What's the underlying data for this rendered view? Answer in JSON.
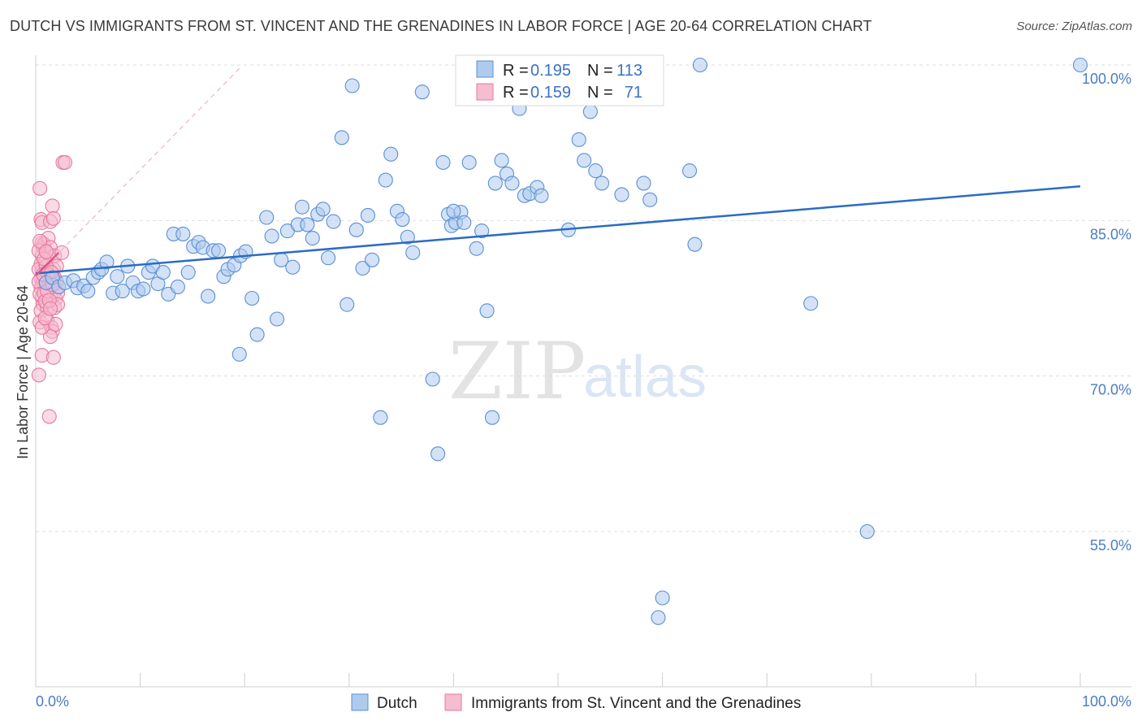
{
  "header": {
    "title": "DUTCH VS IMMIGRANTS FROM ST. VINCENT AND THE GRENADINES IN LABOR FORCE | AGE 20-64 CORRELATION CHART",
    "source": "Source: ZipAtlas.com"
  },
  "watermark": {
    "zip": "ZIP",
    "atlas": "atlas"
  },
  "legend_top": [
    {
      "r_label": "R =",
      "r_value": "0.195",
      "n_label": "N =",
      "n_value": "113"
    },
    {
      "r_label": "R =",
      "r_value": "0.159",
      "n_label": "N =",
      "n_value": "71"
    }
  ],
  "legend_bottom": [
    {
      "label": "Dutch"
    },
    {
      "label": "Immigrants from St. Vincent and the Grenadines"
    }
  ],
  "colors": {
    "dutch_fill": "#aecbee",
    "dutch_stroke": "#5b8fd4",
    "dutch_line": "#2b6cc4",
    "svg_fill": "#f6bcd0",
    "svg_stroke": "#e8789f",
    "svg_line": "#e05586",
    "grid": "#dedede",
    "axis_tick_text": "#4a7cc5"
  },
  "chart_data": {
    "type": "scatter",
    "title": "DUTCH VS IMMIGRANTS FROM ST. VINCENT AND THE GRENADINES IN LABOR FORCE | AGE 20-64 CORRELATION CHART",
    "xlabel": "",
    "ylabel": "In Labor Force | Age 20-64",
    "xlim": [
      0,
      100
    ],
    "ylim": [
      40,
      102
    ],
    "x_ticks": [
      "0.0%",
      "100.0%"
    ],
    "y_ticks": [
      {
        "value": 55,
        "label": "55.0%"
      },
      {
        "value": 70,
        "label": "70.0%"
      },
      {
        "value": 85,
        "label": "85.0%"
      },
      {
        "value": 100,
        "label": "100.0%"
      }
    ],
    "grid": true,
    "legend_placement": "top-center",
    "series": [
      {
        "name": "Dutch",
        "r": 0.195,
        "n": 113,
        "trend": {
          "x": [
            0,
            100
          ],
          "y": [
            79.9,
            88.3
          ]
        },
        "points": [
          [
            1.0,
            79.0
          ],
          [
            1.6,
            79.5
          ],
          [
            2.2,
            78.6
          ],
          [
            2.8,
            79.0
          ],
          [
            3.6,
            79.2
          ],
          [
            4.0,
            78.5
          ],
          [
            4.6,
            78.7
          ],
          [
            5.0,
            78.2
          ],
          [
            5.5,
            79.5
          ],
          [
            6.0,
            80.0
          ],
          [
            6.3,
            80.3
          ],
          [
            6.8,
            81.0
          ],
          [
            7.4,
            78.0
          ],
          [
            7.8,
            79.6
          ],
          [
            8.3,
            78.2
          ],
          [
            8.8,
            80.6
          ],
          [
            9.3,
            79.0
          ],
          [
            9.8,
            78.2
          ],
          [
            10.3,
            78.4
          ],
          [
            10.8,
            80.0
          ],
          [
            11.2,
            80.6
          ],
          [
            11.7,
            78.9
          ],
          [
            12.2,
            80.0
          ],
          [
            12.7,
            77.9
          ],
          [
            13.2,
            83.7
          ],
          [
            13.6,
            78.6
          ],
          [
            14.1,
            83.7
          ],
          [
            14.6,
            80.0
          ],
          [
            15.1,
            82.5
          ],
          [
            15.6,
            82.9
          ],
          [
            16.0,
            82.4
          ],
          [
            16.5,
            77.7
          ],
          [
            17.0,
            82.1
          ],
          [
            17.5,
            82.1
          ],
          [
            18.0,
            79.6
          ],
          [
            18.4,
            80.3
          ],
          [
            19.0,
            80.7
          ],
          [
            19.6,
            81.6
          ],
          [
            20.1,
            82.0
          ],
          [
            20.7,
            77.5
          ],
          [
            21.2,
            74.0
          ],
          [
            19.5,
            72.1
          ],
          [
            22.1,
            85.3
          ],
          [
            22.6,
            83.5
          ],
          [
            23.1,
            75.5
          ],
          [
            23.5,
            81.2
          ],
          [
            24.1,
            84.0
          ],
          [
            24.6,
            80.5
          ],
          [
            25.1,
            84.6
          ],
          [
            25.5,
            86.3
          ],
          [
            26.0,
            84.6
          ],
          [
            26.5,
            83.3
          ],
          [
            27.0,
            85.6
          ],
          [
            27.5,
            86.1
          ],
          [
            28.0,
            81.4
          ],
          [
            28.5,
            84.9
          ],
          [
            29.3,
            93.0
          ],
          [
            29.8,
            76.9
          ],
          [
            30.3,
            98.0
          ],
          [
            30.7,
            84.1
          ],
          [
            31.3,
            80.4
          ],
          [
            31.8,
            85.5
          ],
          [
            32.2,
            81.2
          ],
          [
            33.0,
            66.0
          ],
          [
            33.5,
            88.9
          ],
          [
            34.0,
            91.4
          ],
          [
            34.6,
            85.9
          ],
          [
            35.1,
            85.1
          ],
          [
            35.6,
            83.4
          ],
          [
            36.1,
            81.9
          ],
          [
            37.0,
            97.4
          ],
          [
            38.0,
            69.7
          ],
          [
            38.5,
            62.5
          ],
          [
            39.0,
            90.6
          ],
          [
            39.5,
            85.6
          ],
          [
            39.8,
            84.5
          ],
          [
            40.2,
            84.8
          ],
          [
            40.7,
            85.8
          ],
          [
            41.5,
            90.6
          ],
          [
            42.2,
            82.3
          ],
          [
            42.7,
            84.0
          ],
          [
            43.2,
            76.3
          ],
          [
            43.7,
            66.0
          ],
          [
            44.0,
            88.6
          ],
          [
            44.6,
            90.8
          ],
          [
            45.1,
            89.5
          ],
          [
            45.6,
            88.6
          ],
          [
            46.3,
            95.8
          ],
          [
            46.8,
            87.4
          ],
          [
            47.3,
            87.6
          ],
          [
            48.0,
            88.2
          ],
          [
            48.4,
            87.4
          ],
          [
            50.0,
            99.6
          ],
          [
            51.0,
            84.1
          ],
          [
            52.0,
            92.8
          ],
          [
            52.5,
            90.8
          ],
          [
            53.1,
            95.5
          ],
          [
            53.6,
            89.8
          ],
          [
            54.2,
            88.6
          ],
          [
            56.1,
            87.5
          ],
          [
            58.2,
            88.6
          ],
          [
            58.8,
            87.0
          ],
          [
            60.0,
            48.6
          ],
          [
            59.6,
            46.7
          ],
          [
            62.6,
            89.8
          ],
          [
            63.1,
            82.7
          ],
          [
            63.6,
            100.0
          ],
          [
            74.2,
            77.0
          ],
          [
            79.6,
            55.0
          ],
          [
            100.0,
            100.0
          ],
          [
            49.5,
            100.0
          ],
          [
            40.0,
            85.9
          ],
          [
            41.0,
            84.8
          ]
        ]
      },
      {
        "name": "Immigrants from St. Vincent and the Grenadines",
        "r": 0.159,
        "n": 71,
        "trend": {
          "x": [
            0,
            2.2
          ],
          "y": [
            79.7,
            81.9
          ]
        },
        "points": [
          [
            0.4,
            88.1
          ],
          [
            0.5,
            85.1
          ],
          [
            0.6,
            84.8
          ],
          [
            0.6,
            82.8
          ],
          [
            0.7,
            82.4
          ],
          [
            0.6,
            81.6
          ],
          [
            0.5,
            80.8
          ],
          [
            0.6,
            80.1
          ],
          [
            0.5,
            79.4
          ],
          [
            0.7,
            79.0
          ],
          [
            0.5,
            78.5
          ],
          [
            0.6,
            77.6
          ],
          [
            0.7,
            76.9
          ],
          [
            0.5,
            76.3
          ],
          [
            0.4,
            75.2
          ],
          [
            0.6,
            72.0
          ],
          [
            0.3,
            70.1
          ],
          [
            0.8,
            82.7
          ],
          [
            0.9,
            80.9
          ],
          [
            0.9,
            79.2
          ],
          [
            1.0,
            78.6
          ],
          [
            1.0,
            77.2
          ],
          [
            1.1,
            76.6
          ],
          [
            1.1,
            75.4
          ],
          [
            1.2,
            83.3
          ],
          [
            1.2,
            81.8
          ],
          [
            1.3,
            80.2
          ],
          [
            1.3,
            79.0
          ],
          [
            1.4,
            84.9
          ],
          [
            1.4,
            82.4
          ],
          [
            1.5,
            78.8
          ],
          [
            1.5,
            74.7
          ],
          [
            1.6,
            74.3
          ],
          [
            1.4,
            73.8
          ],
          [
            1.7,
            71.8
          ],
          [
            1.3,
            66.1
          ],
          [
            1.6,
            86.4
          ],
          [
            1.7,
            85.2
          ],
          [
            1.8,
            81.6
          ],
          [
            1.7,
            80.3
          ],
          [
            1.8,
            79.5
          ],
          [
            1.9,
            78.3
          ],
          [
            1.9,
            77.4
          ],
          [
            1.8,
            76.6
          ],
          [
            1.9,
            75.0
          ],
          [
            2.0,
            80.6
          ],
          [
            2.0,
            79.1
          ],
          [
            2.1,
            78.0
          ],
          [
            2.1,
            76.9
          ],
          [
            2.6,
            90.6
          ],
          [
            2.8,
            90.6
          ],
          [
            2.5,
            81.9
          ],
          [
            0.3,
            82.1
          ],
          [
            0.3,
            80.3
          ],
          [
            0.3,
            79.1
          ],
          [
            0.4,
            77.9
          ],
          [
            0.8,
            78.0
          ],
          [
            0.9,
            77.2
          ],
          [
            1.0,
            80.6
          ],
          [
            1.2,
            79.8
          ],
          [
            1.1,
            78.2
          ],
          [
            0.7,
            79.8
          ],
          [
            0.8,
            81.3
          ],
          [
            1.3,
            77.3
          ],
          [
            1.5,
            80.0
          ],
          [
            0.4,
            83.0
          ],
          [
            0.6,
            74.7
          ],
          [
            1.6,
            78.8
          ],
          [
            1.0,
            82.0
          ],
          [
            0.9,
            75.6
          ],
          [
            1.4,
            76.5
          ]
        ]
      }
    ]
  }
}
